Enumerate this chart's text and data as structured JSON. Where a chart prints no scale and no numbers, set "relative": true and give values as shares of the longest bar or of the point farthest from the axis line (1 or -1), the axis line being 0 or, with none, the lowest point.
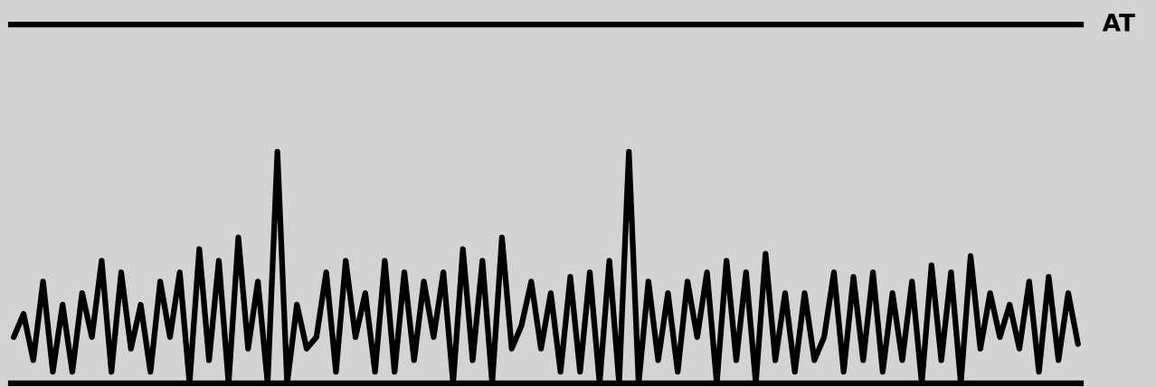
{
  "chart_data": {
    "type": "line",
    "relative": true,
    "categories": [
      null,
      null,
      null,
      null,
      null,
      null,
      null,
      null,
      null,
      null,
      null,
      null,
      null,
      null,
      null,
      null,
      null,
      null,
      null,
      null,
      null,
      null,
      null,
      null,
      null,
      null,
      null,
      null,
      null,
      null,
      null,
      null,
      null,
      null,
      null,
      null,
      null,
      null,
      null,
      null,
      null,
      null,
      null,
      null,
      null,
      null,
      null,
      null,
      null,
      null,
      null,
      null,
      null,
      null,
      null,
      null,
      null,
      null,
      null,
      null,
      null,
      null,
      null,
      null,
      null,
      null,
      null,
      null,
      null,
      null,
      null,
      null,
      null,
      null,
      null,
      null,
      null,
      null,
      null,
      null,
      null,
      null,
      null,
      null,
      null,
      null,
      null,
      null,
      null,
      null,
      null,
      null,
      null,
      null,
      null,
      null,
      null,
      null,
      null,
      null,
      null,
      null,
      null,
      null,
      null,
      null,
      null,
      null,
      null,
      null
    ],
    "series": [
      {
        "color": "#000000",
        "values": [
          0.2,
          0.3,
          0.1,
          0.44,
          0.05,
          0.34,
          0.05,
          0.39,
          0.2,
          0.53,
          0.05,
          0.48,
          0.15,
          0.34,
          0.05,
          0.44,
          0.2,
          0.48,
          0,
          0.58,
          0.1,
          0.53,
          0,
          0.63,
          0.15,
          0.44,
          0,
          1.0,
          0,
          0.34,
          0.15,
          0.2,
          0.48,
          0.05,
          0.53,
          0.2,
          0.39,
          0.05,
          0.53,
          0.05,
          0.48,
          0.1,
          0.44,
          0.2,
          0.48,
          0,
          0.58,
          0.1,
          0.53,
          0,
          0.63,
          0.15,
          0.25,
          0.44,
          0.15,
          0.39,
          0.05,
          0.46,
          0.05,
          0.48,
          0,
          0.53,
          0,
          1.0,
          0,
          0.44,
          0.1,
          0.39,
          0.05,
          0.44,
          0.2,
          0.48,
          0,
          0.53,
          0.1,
          0.48,
          0,
          0.56,
          0.1,
          0.39,
          0.05,
          0.39,
          0.1,
          0.2,
          0.48,
          0.05,
          0.46,
          0.1,
          0.48,
          0.05,
          0.39,
          0.1,
          0.44,
          0,
          0.51,
          0.1,
          0.48,
          0,
          0.55,
          0.15,
          0.39,
          0.2,
          0.34,
          0.15,
          0.44,
          0.05,
          0.46,
          0.1,
          0.39,
          0.17
        ]
      }
    ],
    "ref_lines": [
      {
        "axis": "y",
        "value": 1.55,
        "label": "AT",
        "color": "#000000"
      }
    ],
    "marker": "none",
    "line_style": "solid"
  }
}
